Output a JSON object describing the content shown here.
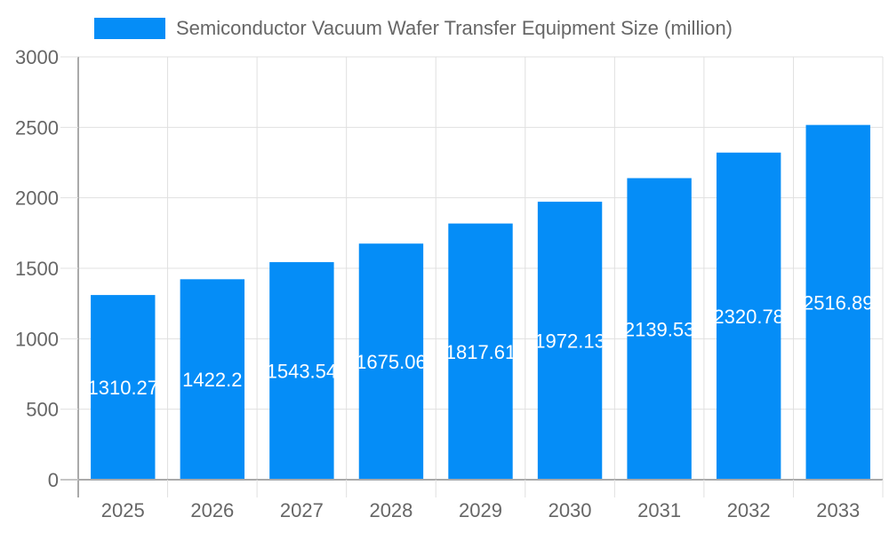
{
  "legend": {
    "label": "Semiconductor Vacuum Wafer Transfer Equipment Size (million)",
    "color": "#058df7"
  },
  "colors": {
    "bar": "#058df7",
    "grid": "#e0e0e0",
    "axis": "#aaaaaa",
    "tick_text": "#666666",
    "value_label": "#ffffff"
  },
  "chart_data": {
    "type": "bar",
    "title": "",
    "xlabel": "",
    "ylabel": "",
    "categories": [
      "2025",
      "2026",
      "2027",
      "2028",
      "2029",
      "2030",
      "2031",
      "2032",
      "2033"
    ],
    "series": [
      {
        "name": "Semiconductor Vacuum Wafer Transfer Equipment Size (million)",
        "values": [
          1310.27,
          1422.2,
          1543.54,
          1675.06,
          1817.61,
          1972.13,
          2139.53,
          2320.78,
          2516.89
        ]
      }
    ],
    "value_labels": [
      "1310.27",
      "1422.2",
      "1543.54",
      "1675.06",
      "1817.61",
      "1972.13",
      "2139.53",
      "2320.78",
      "2516.89"
    ],
    "ylim": [
      0,
      3000
    ],
    "yticks": [
      0,
      500,
      1000,
      1500,
      2000,
      2500,
      3000
    ],
    "grid": true,
    "legend_position": "top"
  }
}
